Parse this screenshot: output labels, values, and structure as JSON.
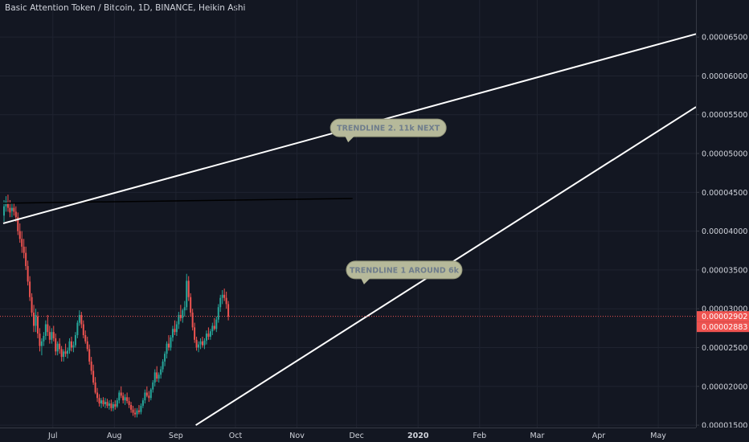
{
  "header": {
    "title": "Basic Attention Token / Bitcoin, 1D, BINANCE, Heikin Ashi"
  },
  "colors": {
    "background": "#131722",
    "grid": "#1f2330",
    "up": "#26a69a",
    "down": "#ef5350",
    "text": "#d1d4dc",
    "trendline": "#ffffff",
    "callout_fill": "#b6b99a",
    "callout_text": "#6f7d8c",
    "price_line": "#ef5350"
  },
  "chart_data": {
    "type": "candlestick",
    "title": "Basic Attention Token / Bitcoin, 1D, BINANCE, Heikin Ashi",
    "x_axis": {
      "labels": [
        "Jul",
        "Aug",
        "Sep",
        "Oct",
        "Nov",
        "Dec",
        "2020",
        "Feb",
        "Mar",
        "Apr",
        "May"
      ],
      "bold_labels": [
        "2020"
      ]
    },
    "y_axis": {
      "tick_labels": [
        "0.00001500",
        "0.00002000",
        "0.00002500",
        "0.00003000",
        "0.00003500",
        "0.00004000",
        "0.00004500",
        "0.00005000",
        "0.00005500",
        "0.00006000",
        "0.00006500"
      ],
      "range": [
        1.48e-05,
        6.75e-05
      ],
      "position": "right"
    },
    "price_labels": [
      {
        "value": "0.00002902",
        "numeric": 2.902e-05
      },
      {
        "value": "0.00002883",
        "numeric": 2.883e-05
      }
    ],
    "candle_start_date": "2019-06-06",
    "candles": [
      [
        4.2e-05,
        4.4e-05,
        4.12e-05,
        4.32e-05
      ],
      [
        4.32e-05,
        4.45e-05,
        4.25e-05,
        4.38e-05
      ],
      [
        4.36e-05,
        4.47e-05,
        4.25e-05,
        4.3e-05
      ],
      [
        4.3e-05,
        4.4e-05,
        4.18e-05,
        4.24e-05
      ],
      [
        4.26e-05,
        4.36e-05,
        4.18e-05,
        4.3e-05
      ],
      [
        4.3e-05,
        4.36e-05,
        4.2e-05,
        4.25e-05
      ],
      [
        4.25e-05,
        4.32e-05,
        4.12e-05,
        4.18e-05
      ],
      [
        4.18e-05,
        4.24e-05,
        3.95e-05,
        4e-05
      ],
      [
        4e-05,
        4.1e-05,
        3.85e-05,
        3.9e-05
      ],
      [
        3.9e-05,
        4e-05,
        3.72e-05,
        3.8e-05
      ],
      [
        3.8e-05,
        3.9e-05,
        3.65e-05,
        3.72e-05
      ],
      [
        3.72e-05,
        3.8e-05,
        3.5e-05,
        3.55e-05
      ],
      [
        3.55e-05,
        3.62e-05,
        3.3e-05,
        3.35e-05
      ],
      [
        3.35e-05,
        3.42e-05,
        3.1e-05,
        3.15e-05
      ],
      [
        3.15e-05,
        3.2e-05,
        2.9e-05,
        2.95e-05
      ],
      [
        2.95e-05,
        3.05e-05,
        2.7e-05,
        2.78e-05
      ],
      [
        2.78e-05,
        3e-05,
        2.7e-05,
        2.92e-05
      ],
      [
        2.9e-05,
        2.96e-05,
        2.62e-05,
        2.68e-05
      ],
      [
        2.68e-05,
        2.75e-05,
        2.45e-05,
        2.52e-05
      ],
      [
        2.52e-05,
        2.62e-05,
        2.4e-05,
        2.58e-05
      ],
      [
        2.58e-05,
        2.7e-05,
        2.52e-05,
        2.65e-05
      ],
      [
        2.65e-05,
        2.85e-05,
        2.6e-05,
        2.8e-05
      ],
      [
        2.8e-05,
        2.92e-05,
        2.65e-05,
        2.7e-05
      ],
      [
        2.7e-05,
        2.78e-05,
        2.55e-05,
        2.6e-05
      ],
      [
        2.6e-05,
        2.75e-05,
        2.55e-05,
        2.7e-05
      ],
      [
        2.7e-05,
        2.78e-05,
        2.58e-05,
        2.62e-05
      ],
      [
        2.62e-05,
        2.68e-05,
        2.4e-05,
        2.45e-05
      ],
      [
        2.45e-05,
        2.58e-05,
        2.4e-05,
        2.55e-05
      ],
      [
        2.55e-05,
        2.62e-05,
        2.42e-05,
        2.48e-05
      ],
      [
        2.48e-05,
        2.52e-05,
        2.32e-05,
        2.38e-05
      ],
      [
        2.38e-05,
        2.48e-05,
        2.32e-05,
        2.45e-05
      ],
      [
        2.45e-05,
        2.55e-05,
        2.38e-05,
        2.42e-05
      ],
      [
        2.42e-05,
        2.5e-05,
        2.36e-05,
        2.46e-05
      ],
      [
        2.46e-05,
        2.62e-05,
        2.42e-05,
        2.58e-05
      ],
      [
        2.58e-05,
        2.64e-05,
        2.45e-05,
        2.5e-05
      ],
      [
        2.5e-05,
        2.58e-05,
        2.44e-05,
        2.53e-05
      ],
      [
        2.53e-05,
        2.7e-05,
        2.5e-05,
        2.66e-05
      ],
      [
        2.66e-05,
        2.85e-05,
        2.62e-05,
        2.82e-05
      ],
      [
        2.82e-05,
        2.98e-05,
        2.78e-05,
        2.92e-05
      ],
      [
        2.92e-05,
        2.96e-05,
        2.75e-05,
        2.8e-05
      ],
      [
        2.8e-05,
        2.85e-05,
        2.62e-05,
        2.66e-05
      ],
      [
        2.66e-05,
        2.72e-05,
        2.55e-05,
        2.58e-05
      ],
      [
        2.58e-05,
        2.64e-05,
        2.45e-05,
        2.48e-05
      ],
      [
        2.48e-05,
        2.54e-05,
        2.28e-05,
        2.32e-05
      ],
      [
        2.32e-05,
        2.38e-05,
        2.15e-05,
        2.2e-05
      ],
      [
        2.2e-05,
        2.28e-05,
        2.02e-05,
        2.05e-05
      ],
      [
        2.05e-05,
        2.12e-05,
        1.9e-05,
        1.92e-05
      ],
      [
        1.92e-05,
        1.98e-05,
        1.8e-05,
        1.85e-05
      ],
      [
        1.85e-05,
        1.9e-05,
        1.74e-05,
        1.78e-05
      ],
      [
        1.78e-05,
        1.85e-05,
        1.72e-05,
        1.82e-05
      ],
      [
        1.82e-05,
        1.86e-05,
        1.74e-05,
        1.77e-05
      ],
      [
        1.77e-05,
        1.85e-05,
        1.72e-05,
        1.8e-05
      ],
      [
        1.8e-05,
        1.84e-05,
        1.72e-05,
        1.75e-05
      ],
      [
        1.75e-05,
        1.82e-05,
        1.7e-05,
        1.78e-05
      ],
      [
        1.78e-05,
        1.83e-05,
        1.68e-05,
        1.72e-05
      ],
      [
        1.72e-05,
        1.8e-05,
        1.68e-05,
        1.77e-05
      ],
      [
        1.77e-05,
        1.82e-05,
        1.7e-05,
        1.74e-05
      ],
      [
        1.74e-05,
        1.85e-05,
        1.72e-05,
        1.82e-05
      ],
      [
        1.82e-05,
        1.95e-05,
        1.78e-05,
        1.92e-05
      ],
      [
        1.92e-05,
        2e-05,
        1.85e-05,
        1.88e-05
      ],
      [
        1.88e-05,
        1.92e-05,
        1.78e-05,
        1.82e-05
      ],
      [
        1.82e-05,
        1.9e-05,
        1.76e-05,
        1.86e-05
      ],
      [
        1.86e-05,
        1.92e-05,
        1.78e-05,
        1.81e-05
      ],
      [
        1.81e-05,
        1.86e-05,
        1.72e-05,
        1.76e-05
      ],
      [
        1.76e-05,
        1.8e-05,
        1.66e-05,
        1.7e-05
      ],
      [
        1.7e-05,
        1.75e-05,
        1.62e-05,
        1.66e-05
      ],
      [
        1.66e-05,
        1.72e-05,
        1.6e-05,
        1.64e-05
      ],
      [
        1.64e-05,
        1.72e-05,
        1.6e-05,
        1.69e-05
      ],
      [
        1.69e-05,
        1.76e-05,
        1.64e-05,
        1.67e-05
      ],
      [
        1.67e-05,
        1.78e-05,
        1.64e-05,
        1.75e-05
      ],
      [
        1.75e-05,
        1.85e-05,
        1.72e-05,
        1.82e-05
      ],
      [
        1.82e-05,
        1.96e-05,
        1.78e-05,
        1.92e-05
      ],
      [
        1.92e-05,
        2e-05,
        1.86e-05,
        1.88e-05
      ],
      [
        1.88e-05,
        1.94e-05,
        1.8e-05,
        1.85e-05
      ],
      [
        1.85e-05,
        1.98e-05,
        1.82e-05,
        1.96e-05
      ],
      [
        1.96e-05,
        2.08e-05,
        1.92e-05,
        2.05e-05
      ],
      [
        2.05e-05,
        2.22e-05,
        2e-05,
        2.18e-05
      ],
      [
        2.18e-05,
        2.26e-05,
        2.06e-05,
        2.1e-05
      ],
      [
        2.1e-05,
        2.18e-05,
        2.05e-05,
        2.15e-05
      ],
      [
        2.15e-05,
        2.26e-05,
        2.1e-05,
        2.22e-05
      ],
      [
        2.22e-05,
        2.35e-05,
        2.18e-05,
        2.32e-05
      ],
      [
        2.32e-05,
        2.45e-05,
        2.26e-05,
        2.42e-05
      ],
      [
        2.42e-05,
        2.58e-05,
        2.36e-05,
        2.55e-05
      ],
      [
        2.55e-05,
        2.66e-05,
        2.46e-05,
        2.5e-05
      ],
      [
        2.5e-05,
        2.66e-05,
        2.46e-05,
        2.63e-05
      ],
      [
        2.63e-05,
        2.78e-05,
        2.58e-05,
        2.74e-05
      ],
      [
        2.74e-05,
        2.85e-05,
        2.66e-05,
        2.7e-05
      ],
      [
        2.7e-05,
        2.84e-05,
        2.65e-05,
        2.8e-05
      ],
      [
        2.8e-05,
        2.96e-05,
        2.74e-05,
        2.92e-05
      ],
      [
        2.92e-05,
        3.05e-05,
        2.84e-05,
        2.88e-05
      ],
      [
        2.88e-05,
        3e-05,
        2.82e-05,
        2.98e-05
      ],
      [
        2.98e-05,
        3.1e-05,
        2.9e-05,
        3.02e-05
      ],
      [
        3.02e-05,
        3.45e-05,
        2.98e-05,
        3.36e-05
      ],
      [
        3.36e-05,
        3.42e-05,
        3.1e-05,
        3.15e-05
      ],
      [
        3.15e-05,
        3.2e-05,
        2.9e-05,
        2.95e-05
      ],
      [
        2.95e-05,
        3e-05,
        2.72e-05,
        2.76e-05
      ],
      [
        2.76e-05,
        2.82e-05,
        2.56e-05,
        2.6e-05
      ],
      [
        2.6e-05,
        2.64e-05,
        2.46e-05,
        2.5e-05
      ],
      [
        2.5e-05,
        2.58e-05,
        2.44e-05,
        2.54e-05
      ],
      [
        2.54e-05,
        2.62e-05,
        2.48e-05,
        2.58e-05
      ],
      [
        2.58e-05,
        2.64e-05,
        2.5e-05,
        2.53e-05
      ],
      [
        2.53e-05,
        2.62e-05,
        2.48e-05,
        2.59e-05
      ],
      [
        2.59e-05,
        2.72e-05,
        2.54e-05,
        2.68e-05
      ],
      [
        2.68e-05,
        2.76e-05,
        2.6e-05,
        2.64e-05
      ],
      [
        2.64e-05,
        2.74e-05,
        2.6e-05,
        2.71e-05
      ],
      [
        2.71e-05,
        2.82e-05,
        2.66e-05,
        2.78e-05
      ],
      [
        2.78e-05,
        2.88e-05,
        2.72e-05,
        2.74e-05
      ],
      [
        2.74e-05,
        2.9e-05,
        2.7e-05,
        2.86e-05
      ],
      [
        2.86e-05,
        3.06e-05,
        2.82e-05,
        3.02e-05
      ],
      [
        3.02e-05,
        3.18e-05,
        2.96e-05,
        3.14e-05
      ],
      [
        3.14e-05,
        3.24e-05,
        3.06e-05,
        3.18e-05
      ],
      [
        3.18e-05,
        3.26e-05,
        3.1e-05,
        3.14e-05
      ],
      [
        3.14e-05,
        3.22e-05,
        3e-05,
        3.06e-05
      ],
      [
        3.06e-05,
        3.1e-05,
        2.85e-05,
        2.9e-05
      ]
    ],
    "trendlines": [
      {
        "name": "horizontal-resistance",
        "color": "#000000",
        "points": [
          [
            "2019-06-06",
            4.36e-05
          ],
          [
            "2019-11-29",
            4.42e-05
          ]
        ]
      },
      {
        "name": "upper-channel",
        "color": "#ffffff",
        "points": [
          [
            "2019-06-06",
            4.1e-05
          ],
          [
            "2020-05-20",
            6.54e-05
          ]
        ]
      },
      {
        "name": "lower-support",
        "color": "#ffffff",
        "points": [
          [
            "2019-09-11",
            1.5e-05
          ],
          [
            "2020-05-20",
            5.6e-05
          ]
        ]
      }
    ],
    "callouts": [
      {
        "text": "TRENDLINE 2. 11k NEXT",
        "anchor": [
          "2019-12-17",
          5.33e-05
        ]
      },
      {
        "text": "TRENDLINE 1 AROUND 6k",
        "anchor": [
          "2019-12-25",
          3.5e-05
        ]
      }
    ]
  }
}
